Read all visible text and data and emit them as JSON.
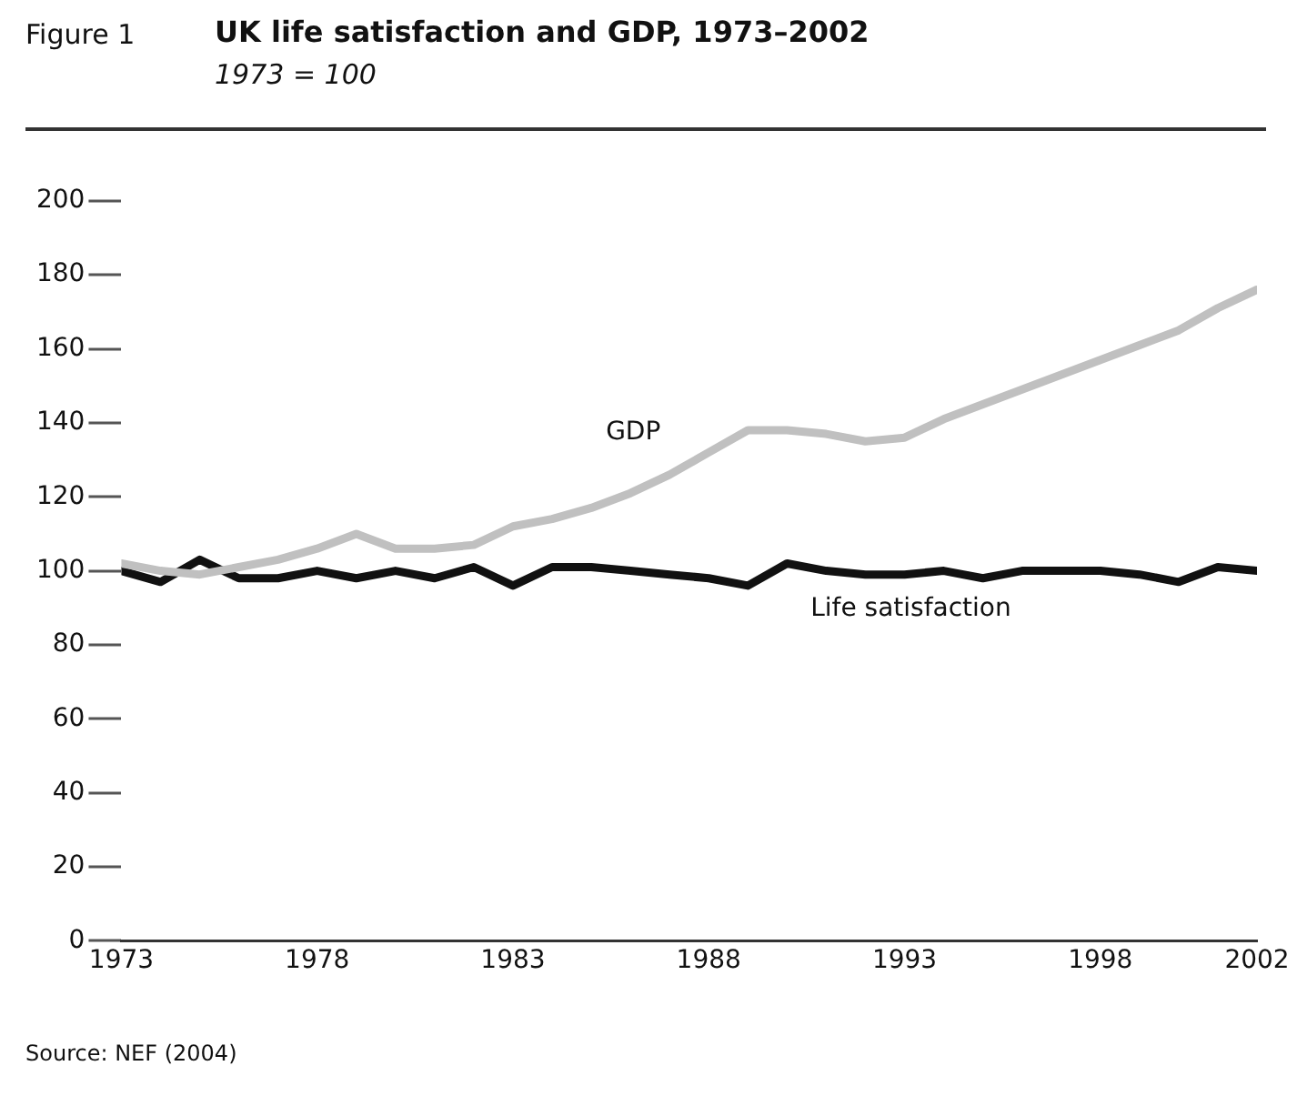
{
  "chart_data": {
    "type": "line",
    "title": "UK life satisfaction and GDP, 1973–2002",
    "subtitle": "1973 = 100",
    "annotations": [
      "Figure 1",
      "Source: NEF (2004)"
    ],
    "x": [
      1973,
      1974,
      1975,
      1976,
      1977,
      1978,
      1979,
      1980,
      1981,
      1982,
      1983,
      1984,
      1985,
      1986,
      1987,
      1988,
      1989,
      1990,
      1991,
      1992,
      1993,
      1994,
      1995,
      1996,
      1997,
      1998,
      1999,
      2000,
      2001,
      2002
    ],
    "series": [
      {
        "name": "GDP",
        "color": "#c0c0c0",
        "values": [
          102,
          100,
          99,
          101,
          103,
          106,
          110,
          106,
          106,
          107,
          112,
          114,
          117,
          121,
          126,
          132,
          138,
          138,
          137,
          135,
          136,
          141,
          145,
          149,
          153,
          157,
          161,
          165,
          171,
          176
        ]
      },
      {
        "name": "Life satisfaction",
        "color": "#111111",
        "values": [
          100,
          97,
          103,
          98,
          98,
          100,
          98,
          100,
          98,
          101,
          96,
          101,
          101,
          100,
          99,
          98,
          96,
          102,
          100,
          99,
          99,
          100,
          98,
          100,
          100,
          100,
          99,
          97,
          101,
          100
        ]
      }
    ],
    "xlim": [
      1973,
      2002
    ],
    "xticks": [
      1973,
      1978,
      1983,
      1988,
      1993,
      1998,
      2002
    ],
    "ylim": [
      0,
      200
    ],
    "yticks": [
      0,
      20,
      40,
      60,
      80,
      100,
      120,
      140,
      160,
      180,
      200
    ],
    "grid": false,
    "legend": false,
    "marker": "none",
    "line_style": "solid"
  }
}
